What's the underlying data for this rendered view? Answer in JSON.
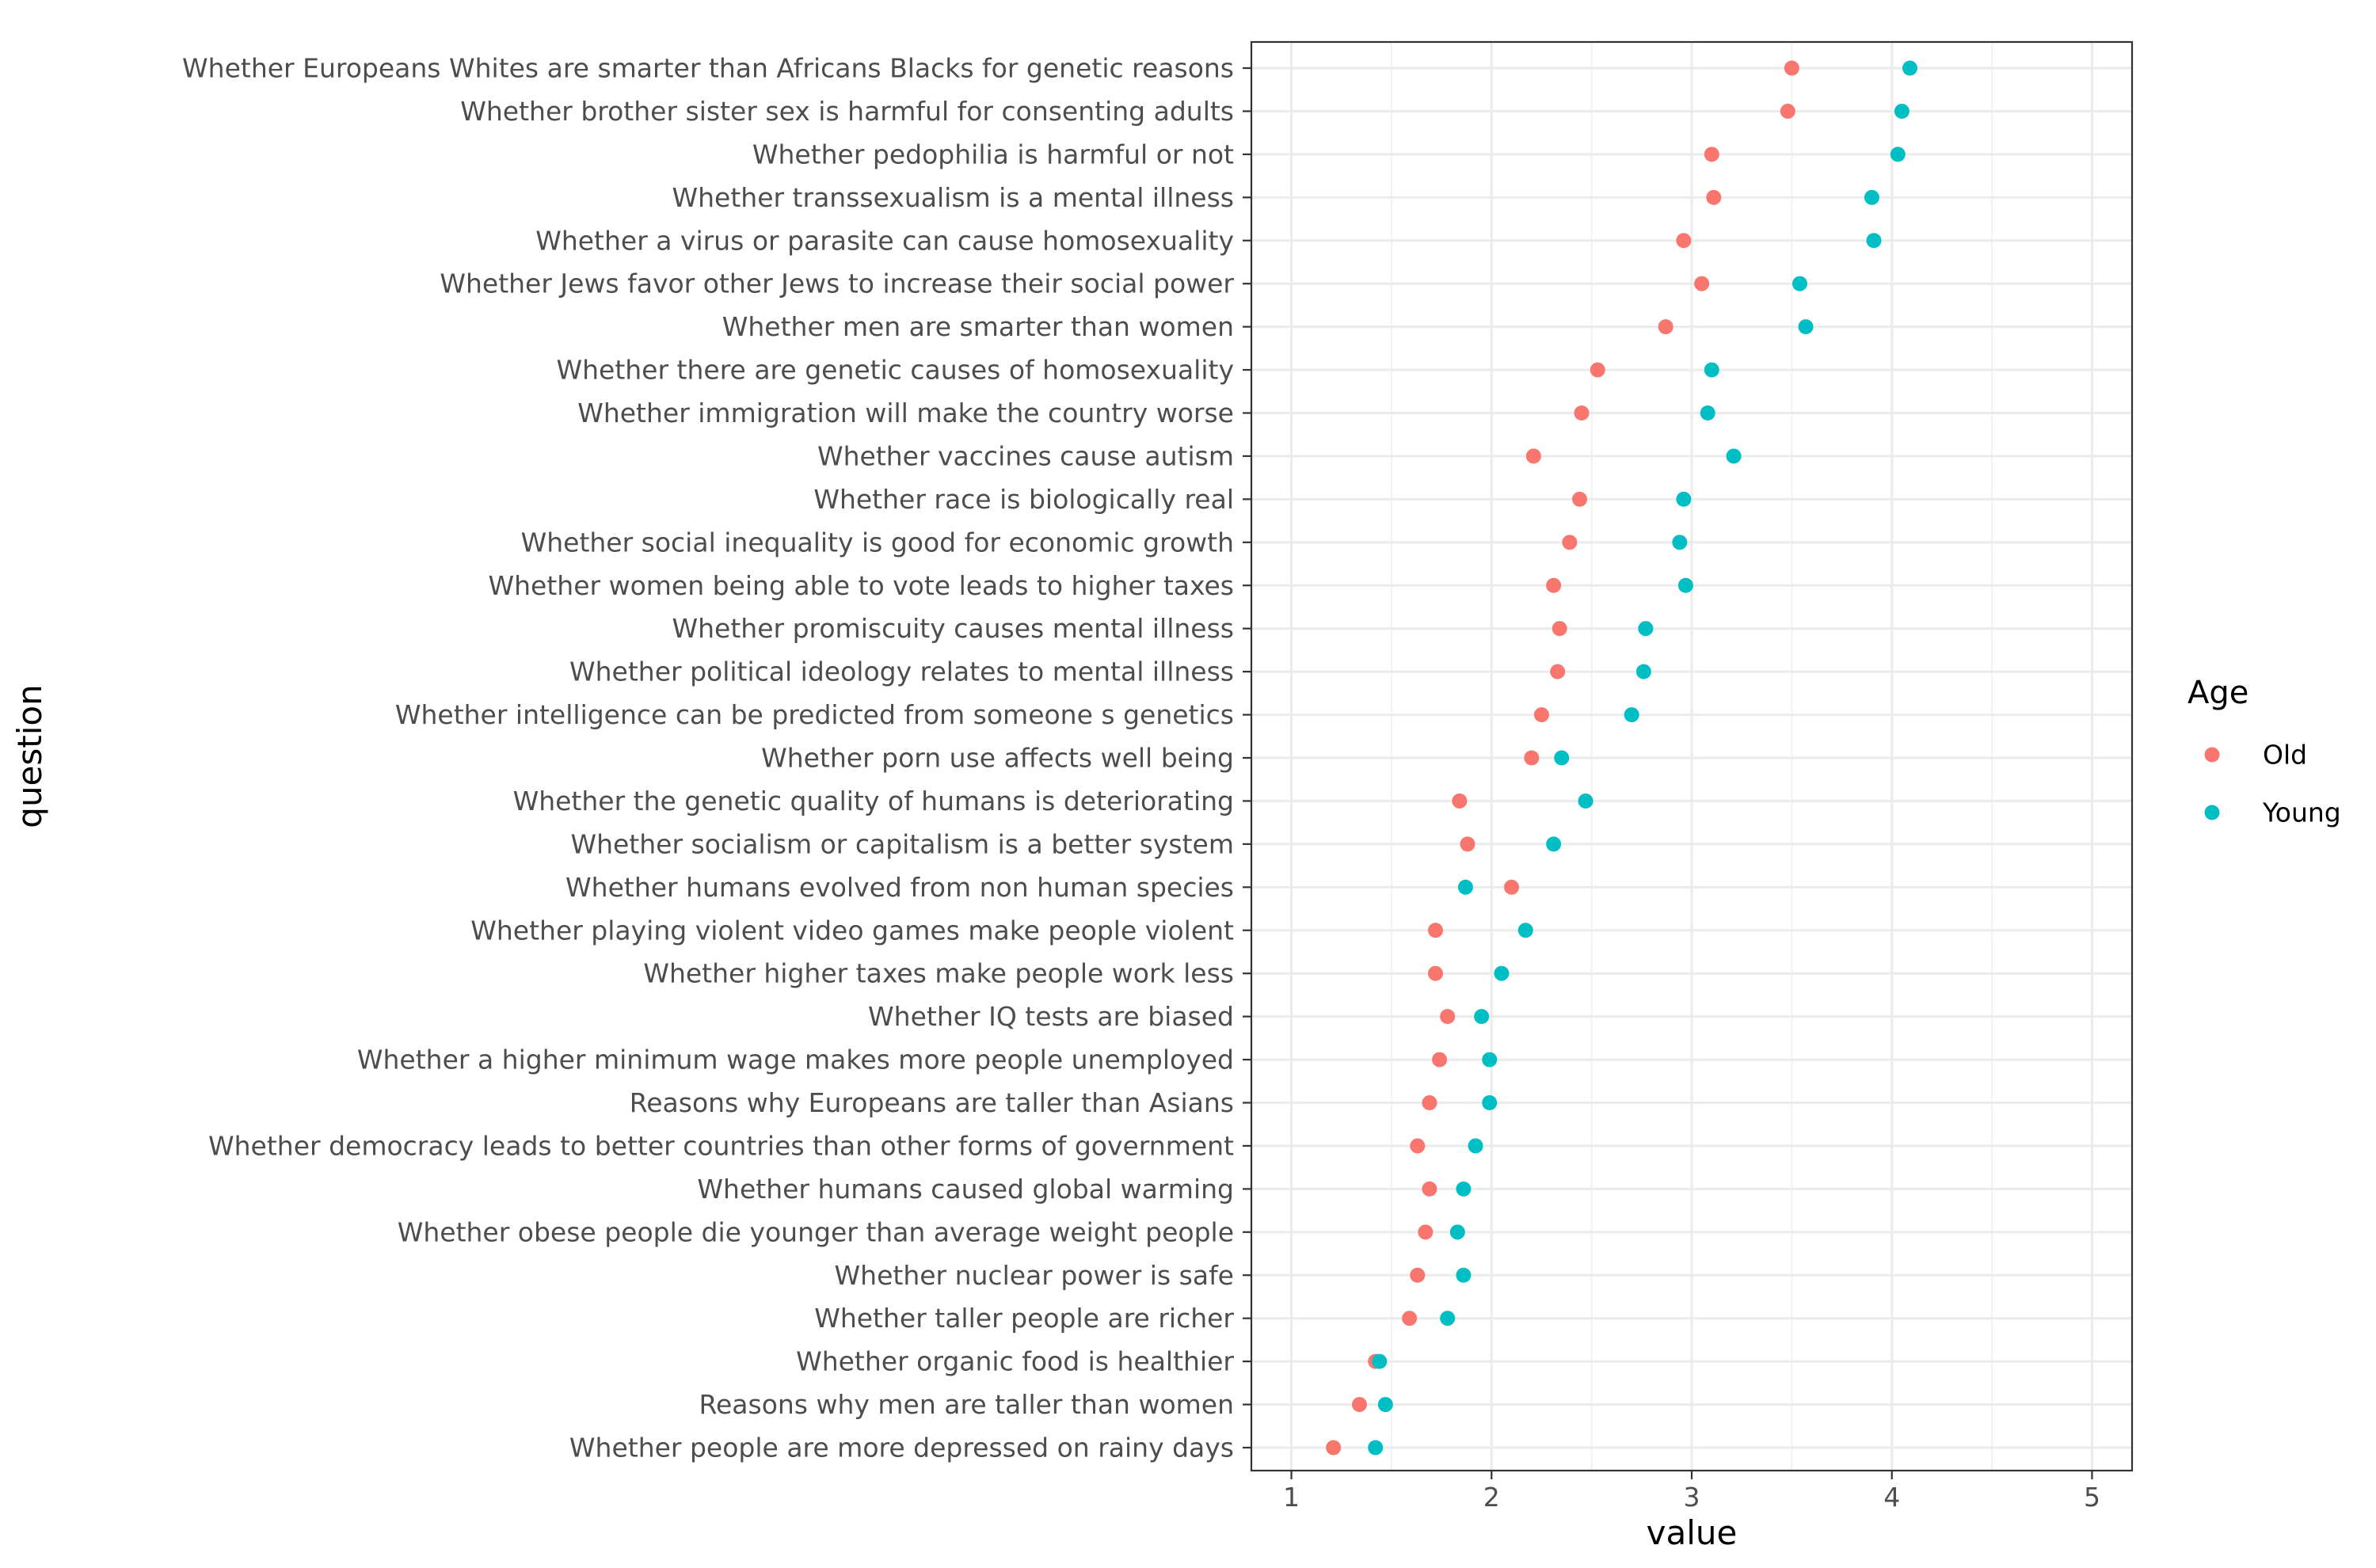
{
  "chart_data": {
    "type": "scatter",
    "xlabel": "value",
    "ylabel": "question",
    "xlim": [
      0.8,
      5.2
    ],
    "x_ticks": [
      "1",
      "2",
      "3",
      "4",
      "5"
    ],
    "grid": true,
    "legend_position": "right",
    "legend": {
      "title": "Age",
      "entries": [
        {
          "name": "Old",
          "color": "#F8766D"
        },
        {
          "name": "Young",
          "color": "#00BFC4"
        }
      ]
    },
    "categories": [
      "Whether Europeans Whites are smarter than Africans Blacks for genetic reasons",
      "Whether brother sister sex is harmful for consenting adults",
      "Whether pedophilia is harmful or not",
      "Whether transsexualism is a mental illness",
      "Whether a virus or parasite can cause homosexuality",
      "Whether Jews favor other Jews to increase their social power",
      "Whether men are smarter than women",
      "Whether there are genetic causes of homosexuality",
      "Whether immigration will make the country worse",
      "Whether vaccines cause autism",
      "Whether race is biologically real",
      "Whether social inequality is good for economic growth",
      "Whether women being able to vote leads to higher taxes",
      "Whether promiscuity causes mental illness",
      "Whether political ideology relates to mental illness",
      "Whether intelligence can be predicted from someone s genetics",
      "Whether porn use affects well being",
      "Whether the genetic quality of humans is deteriorating",
      "Whether socialism or capitalism is a better system",
      "Whether humans evolved from non human species",
      "Whether playing violent video games make people violent",
      "Whether higher taxes make people work less",
      "Whether IQ tests are biased",
      "Whether a higher minimum wage makes more people unemployed",
      "Reasons why Europeans are taller than Asians",
      "Whether democracy leads to better countries than other forms of government",
      "Whether humans caused global warming",
      "Whether obese people die younger than average weight people",
      "Whether nuclear power is safe",
      "Whether taller people are richer",
      "Whether organic food is healthier",
      "Reasons why men are taller than women",
      "Whether people are more depressed on rainy days"
    ],
    "series": [
      {
        "name": "Old",
        "color": "#F8766D",
        "values": [
          3.5,
          3.48,
          3.1,
          3.11,
          2.96,
          3.05,
          2.87,
          2.53,
          2.45,
          2.21,
          2.44,
          2.39,
          2.31,
          2.34,
          2.33,
          2.25,
          2.2,
          1.84,
          1.88,
          2.1,
          1.72,
          1.72,
          1.78,
          1.74,
          1.69,
          1.63,
          1.69,
          1.67,
          1.63,
          1.59,
          1.42,
          1.34,
          1.21
        ]
      },
      {
        "name": "Young",
        "color": "#00BFC4",
        "values": [
          4.09,
          4.05,
          4.03,
          3.9,
          3.91,
          3.54,
          3.57,
          3.1,
          3.08,
          3.21,
          2.96,
          2.94,
          2.97,
          2.77,
          2.76,
          2.7,
          2.35,
          2.47,
          2.31,
          1.87,
          2.17,
          2.05,
          1.95,
          1.99,
          1.99,
          1.92,
          1.86,
          1.83,
          1.86,
          1.78,
          1.44,
          1.47,
          1.42
        ]
      }
    ]
  }
}
